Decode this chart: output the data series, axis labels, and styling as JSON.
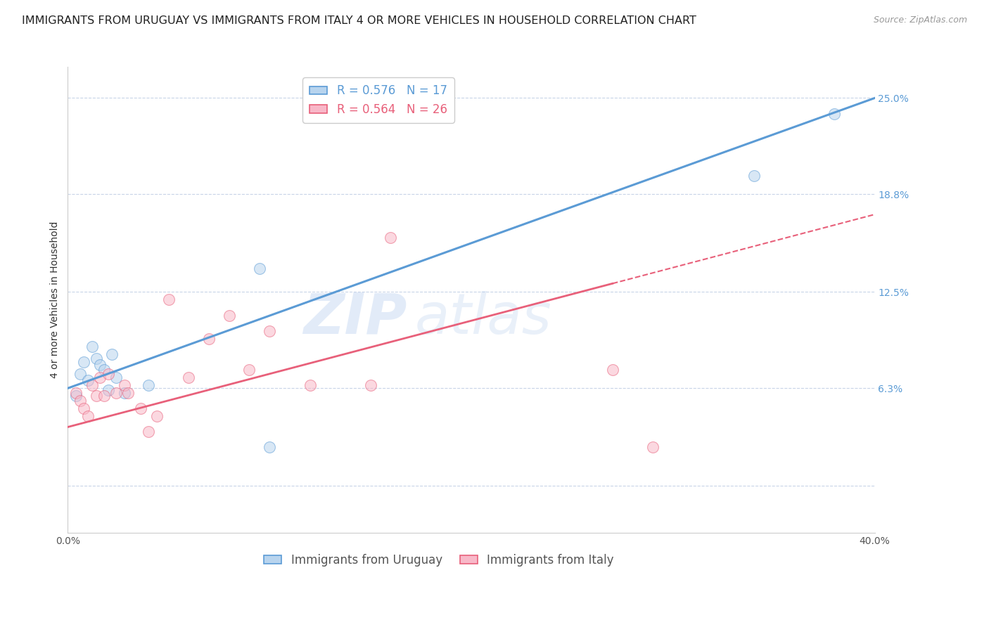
{
  "title": "IMMIGRANTS FROM URUGUAY VS IMMIGRANTS FROM ITALY 4 OR MORE VEHICLES IN HOUSEHOLD CORRELATION CHART",
  "source": "Source: ZipAtlas.com",
  "ylabel": "4 or more Vehicles in Household",
  "x_min": 0.0,
  "x_max": 0.4,
  "y_min": -0.03,
  "y_max": 0.27,
  "right_yticks": [
    0.0,
    0.063,
    0.125,
    0.188,
    0.25
  ],
  "right_yticklabels": [
    "",
    "6.3%",
    "12.5%",
    "18.8%",
    "25.0%"
  ],
  "bottom_xticks": [
    0.0,
    0.08,
    0.16,
    0.24,
    0.32,
    0.4
  ],
  "bottom_xticklabels": [
    "0.0%",
    "",
    "",
    "",
    "",
    "40.0%"
  ],
  "legend_R1": "0.576",
  "legend_N1": "17",
  "legend_R2": "0.564",
  "legend_N2": "26",
  "color_uruguay_fill": "#b8d4ee",
  "color_italy_fill": "#f8b8c8",
  "color_line_uruguay": "#5b9bd5",
  "color_line_italy": "#e8607a",
  "color_right_labels": "#5b9bd5",
  "watermark_line1": "ZIP",
  "watermark_line2": "atlas",
  "uruguay_x": [
    0.004,
    0.008,
    0.01,
    0.012,
    0.014,
    0.016,
    0.018,
    0.02,
    0.022,
    0.024,
    0.026,
    0.028,
    0.04,
    0.095,
    0.1,
    0.34,
    0.38
  ],
  "uruguay_y": [
    0.058,
    0.072,
    0.08,
    0.068,
    0.09,
    0.082,
    0.078,
    0.075,
    0.062,
    0.085,
    0.07,
    0.06,
    0.065,
    0.14,
    0.025,
    0.2,
    0.24
  ],
  "italy_x": [
    0.004,
    0.006,
    0.008,
    0.01,
    0.012,
    0.014,
    0.016,
    0.018,
    0.02,
    0.024,
    0.028,
    0.03,
    0.036,
    0.04,
    0.044,
    0.05,
    0.06,
    0.07,
    0.08,
    0.09,
    0.1,
    0.12,
    0.15,
    0.16,
    0.27,
    0.29
  ],
  "italy_y": [
    0.06,
    0.055,
    0.05,
    0.045,
    0.065,
    0.058,
    0.07,
    0.058,
    0.072,
    0.06,
    0.065,
    0.06,
    0.05,
    0.035,
    0.045,
    0.12,
    0.07,
    0.095,
    0.11,
    0.075,
    0.1,
    0.065,
    0.065,
    0.16,
    0.075,
    0.025
  ],
  "dot_size": 130,
  "dot_alpha": 0.55,
  "grid_color": "#c8d4e8",
  "background_color": "#ffffff",
  "title_fontsize": 11.5,
  "source_fontsize": 9,
  "axis_label_fontsize": 10,
  "tick_fontsize": 10,
  "legend_fontsize": 12
}
